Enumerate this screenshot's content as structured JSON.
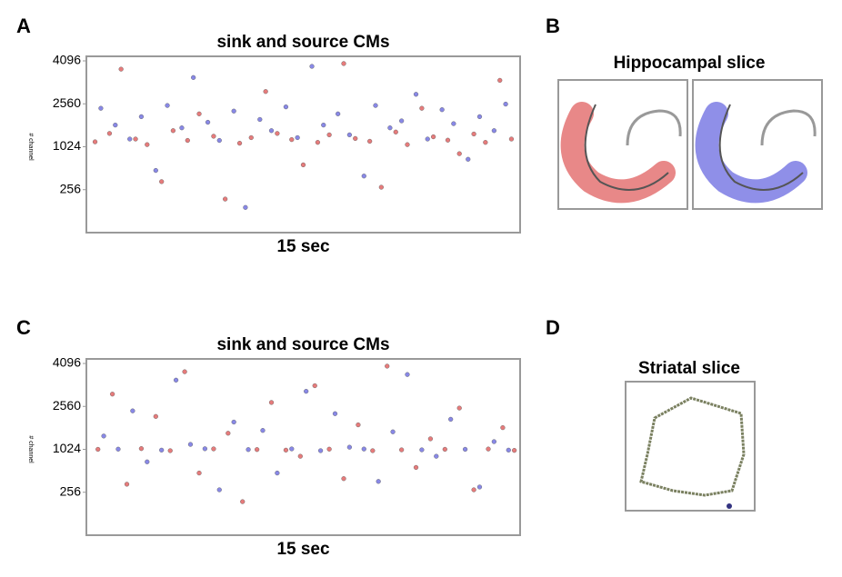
{
  "panels": {
    "labels": [
      "A",
      "B",
      "C",
      "D"
    ],
    "hippocampal_title": "Hippocampal slice",
    "striatal_title": "Striatal slice"
  },
  "chart_data": [
    {
      "type": "scatter",
      "title": "sink and source CMs",
      "x_label": "15 sec",
      "y_label": "# channel",
      "xlim": [
        0,
        15
      ],
      "ylim": [
        0,
        4096
      ],
      "yticks": [
        256,
        1024,
        2560,
        4096
      ],
      "series": [
        {
          "color": "#e05a5a",
          "x": [
            0.3,
            0.8,
            1.2,
            1.7,
            2.1,
            2.6,
            3.0,
            3.5,
            3.9,
            4.4,
            4.8,
            5.3,
            5.7,
            6.2,
            6.6,
            7.1,
            7.5,
            8.0,
            8.4,
            8.9,
            9.3,
            9.8,
            10.2,
            10.7,
            11.1,
            11.6,
            12.0,
            12.5,
            12.9,
            13.4,
            13.8,
            14.3,
            14.7
          ],
          "values": [
            1200,
            1500,
            3800,
            1300,
            1100,
            400,
            1600,
            1250,
            2200,
            1400,
            200,
            1150,
            1350,
            3000,
            1500,
            1280,
            700,
            1180,
            1450,
            4000,
            1320,
            1220,
            300,
            1550,
            1100,
            2400,
            1380,
            1260,
            900,
            1480,
            1180,
            3400,
            1300
          ]
        },
        {
          "color": "#6a6ae0",
          "x": [
            0.5,
            1.0,
            1.5,
            1.9,
            2.4,
            2.8,
            3.3,
            3.7,
            4.2,
            4.6,
            5.1,
            5.5,
            6.0,
            6.4,
            6.9,
            7.3,
            7.8,
            8.2,
            8.7,
            9.1,
            9.6,
            10.0,
            10.5,
            10.9,
            11.4,
            11.8,
            12.3,
            12.7,
            13.2,
            13.6,
            14.1,
            14.5
          ],
          "values": [
            2400,
            1800,
            1300,
            2100,
            600,
            2500,
            1700,
            3500,
            1900,
            1250,
            2300,
            150,
            2000,
            1600,
            2450,
            1350,
            3900,
            1800,
            2200,
            1450,
            500,
            2500,
            1700,
            1950,
            2900,
            1300,
            2350,
            1850,
            800,
            2100,
            1600,
            2550
          ]
        }
      ]
    },
    {
      "type": "scatter",
      "title": "sink and source CMs",
      "x_label": "15 sec",
      "y_label": "# channel",
      "xlim": [
        0,
        15
      ],
      "ylim": [
        0,
        4096
      ],
      "yticks": [
        256,
        1024,
        2560,
        4096
      ],
      "series": [
        {
          "color": "#e05a5a",
          "x": [
            0.4,
            0.9,
            1.4,
            1.9,
            2.4,
            2.9,
            3.4,
            3.9,
            4.4,
            4.9,
            5.4,
            5.9,
            6.4,
            6.9,
            7.4,
            7.9,
            8.4,
            8.9,
            9.4,
            9.9,
            10.4,
            10.9,
            11.4,
            11.9,
            12.4,
            12.9,
            13.4,
            13.9,
            14.4,
            14.8
          ],
          "values": [
            1024,
            3000,
            400,
            1050,
            2200,
            1000,
            3800,
            600,
            1040,
            1600,
            200,
            1020,
            2700,
            1010,
            900,
            3300,
            1030,
            500,
            1900,
            1000,
            4000,
            1015,
            700,
            1400,
            1025,
            2500,
            300,
            1035,
            1800,
            1005
          ]
        },
        {
          "color": "#6a6ae0",
          "x": [
            0.6,
            1.1,
            1.6,
            2.1,
            2.6,
            3.1,
            3.6,
            4.1,
            4.6,
            5.1,
            5.6,
            6.1,
            6.6,
            7.1,
            7.6,
            8.1,
            8.6,
            9.1,
            9.6,
            10.1,
            10.6,
            11.1,
            11.6,
            12.1,
            12.6,
            13.1,
            13.6,
            14.1,
            14.6
          ],
          "values": [
            1500,
            1030,
            2400,
            800,
            1010,
            3500,
            1200,
            1045,
            300,
            2000,
            1020,
            1700,
            600,
            1040,
            3100,
            1000,
            2300,
            1100,
            1035,
            450,
            1650,
            3700,
            1015,
            900,
            2100,
            1025,
            350,
            1300,
            1010
          ]
        }
      ]
    }
  ]
}
